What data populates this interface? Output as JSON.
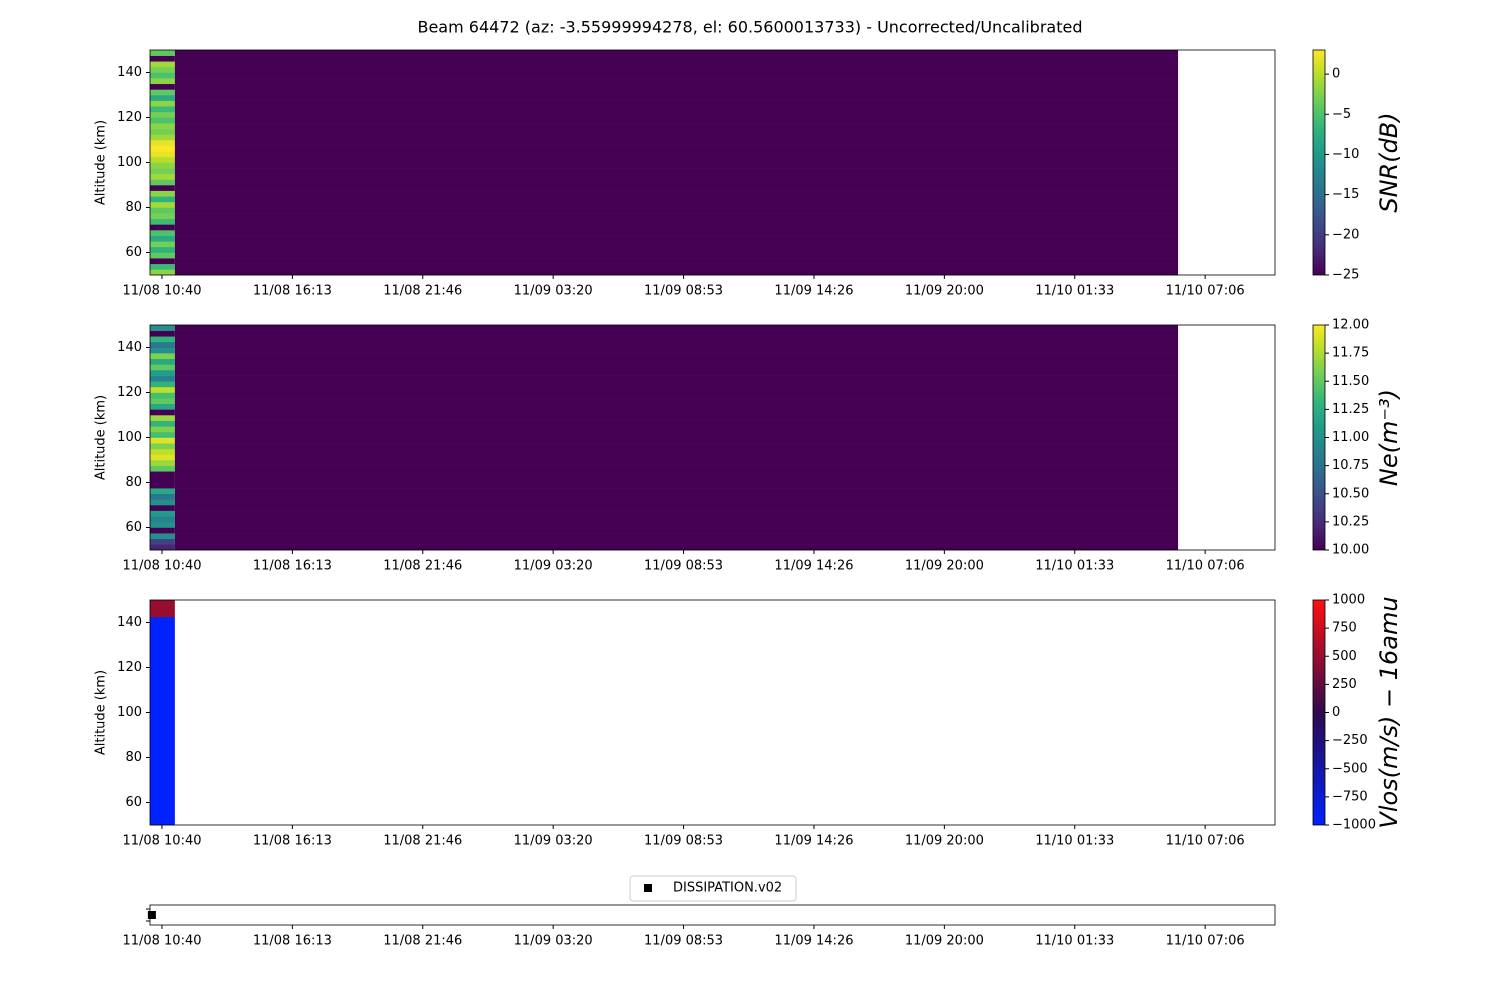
{
  "title": "Beam 64472 (az: -3.55999994278, el: 60.5600013733) - Uncorrected/Uncalibrated",
  "chart_data": [
    {
      "type": "heatmap",
      "ylabel": "Altitude (km)",
      "colorbar_label": "SNR(dB)",
      "colormap": [
        "#440154",
        "#482878",
        "#3e4989",
        "#31688e",
        "#26828e",
        "#1f9e89",
        "#35b779",
        "#6ece58",
        "#b5de2b",
        "#fde725"
      ],
      "clim": [
        -25,
        3
      ],
      "cticks": [
        {
          "value": -25,
          "label": "−25"
        },
        {
          "value": -20,
          "label": "−20"
        },
        {
          "value": -15,
          "label": "−15"
        },
        {
          "value": -10,
          "label": "−10"
        },
        {
          "value": -5,
          "label": "−5"
        },
        0
      ],
      "xlim": [
        -0.51,
        47.42
      ],
      "xticks": [
        {
          "value": 0,
          "label": "11/08 10:40"
        },
        {
          "value": 5.556,
          "label": "11/08 16:13"
        },
        {
          "value": 11.111,
          "label": "11/08 21:46"
        },
        {
          "value": 16.667,
          "label": "11/09 03:20"
        },
        {
          "value": 22.222,
          "label": "11/09 08:53"
        },
        {
          "value": 27.778,
          "label": "11/09 14:26"
        },
        {
          "value": 33.333,
          "label": "11/09 20:00"
        },
        {
          "value": 38.889,
          "label": "11/10 01:33"
        },
        {
          "value": 44.444,
          "label": "11/10 07:06"
        }
      ],
      "ylim": [
        50,
        150
      ],
      "yticks": [
        60,
        80,
        100,
        120,
        140
      ],
      "x_edges": [
        -0.51,
        0.55,
        43.29
      ],
      "y_edges": [
        50,
        52.5,
        55,
        57.5,
        60,
        62.5,
        65,
        67.5,
        70,
        72.5,
        75,
        77.5,
        80,
        82.5,
        85,
        87.5,
        90,
        92.5,
        95,
        97.5,
        100,
        102.5,
        105,
        107.5,
        110,
        112.5,
        115,
        117.5,
        120,
        122.5,
        125,
        127.5,
        130,
        132.5,
        135,
        137.5,
        140,
        142.5,
        145,
        147.5,
        150
      ],
      "z": [
        [
          -2,
          -25
        ],
        [
          -6,
          -25
        ],
        [
          -25,
          -25
        ],
        [
          -4,
          -25
        ],
        [
          -7,
          -25
        ],
        [
          -3,
          -25
        ],
        [
          -8,
          -25
        ],
        [
          -5,
          -25
        ],
        [
          -25,
          -25
        ],
        [
          -6,
          -25
        ],
        [
          -3,
          -25
        ],
        [
          -4,
          -25
        ],
        [
          -1,
          -25
        ],
        [
          -7,
          -25
        ],
        [
          -2,
          -25
        ],
        [
          -25,
          -25
        ],
        [
          -4,
          -25
        ],
        [
          -1,
          -25
        ],
        [
          -3,
          -25
        ],
        [
          -2,
          -25
        ],
        [
          0,
          -25
        ],
        [
          2,
          -25
        ],
        [
          3,
          -25
        ],
        [
          2,
          -25
        ],
        [
          -1,
          -25
        ],
        [
          -3,
          -25
        ],
        [
          -2,
          -25
        ],
        [
          -5,
          -25
        ],
        [
          -3,
          -25
        ],
        [
          -6,
          -25
        ],
        [
          -2,
          -25
        ],
        [
          -8,
          -25
        ],
        [
          -4,
          -25
        ],
        [
          -25,
          -25
        ],
        [
          -2,
          -25
        ],
        [
          -5,
          -25
        ],
        [
          -3,
          -25
        ],
        [
          -1,
          -25
        ],
        [
          -25,
          -25
        ],
        [
          -4,
          -25
        ]
      ]
    },
    {
      "type": "heatmap",
      "ylabel": "Altitude (km)",
      "colorbar_label": "Ne(m⁻³)",
      "colormap": [
        "#440154",
        "#482878",
        "#3e4989",
        "#31688e",
        "#26828e",
        "#1f9e89",
        "#35b779",
        "#6ece58",
        "#b5de2b",
        "#fde725"
      ],
      "clim": [
        10,
        12
      ],
      "cticks": [
        {
          "value": 10,
          "label": "10.00"
        },
        {
          "value": 10.25,
          "label": "10.25"
        },
        {
          "value": 10.5,
          "label": "10.50"
        },
        {
          "value": 10.75,
          "label": "10.75"
        },
        {
          "value": 11,
          "label": "11.00"
        },
        {
          "value": 11.25,
          "label": "11.25"
        },
        {
          "value": 11.5,
          "label": "11.50"
        },
        {
          "value": 11.75,
          "label": "11.75"
        },
        {
          "value": 12,
          "label": "12.00"
        }
      ],
      "xlim": [
        -0.51,
        47.42
      ],
      "xticks": [
        {
          "value": 0,
          "label": "11/08 10:40"
        },
        {
          "value": 5.556,
          "label": "11/08 16:13"
        },
        {
          "value": 11.111,
          "label": "11/08 21:46"
        },
        {
          "value": 16.667,
          "label": "11/09 03:20"
        },
        {
          "value": 22.222,
          "label": "11/09 08:53"
        },
        {
          "value": 27.778,
          "label": "11/09 14:26"
        },
        {
          "value": 33.333,
          "label": "11/09 20:00"
        },
        {
          "value": 38.889,
          "label": "11/10 01:33"
        },
        {
          "value": 44.444,
          "label": "11/10 07:06"
        }
      ],
      "ylim": [
        50,
        150
      ],
      "yticks": [
        60,
        80,
        100,
        120,
        140
      ],
      "x_edges": [
        -0.51,
        0.55,
        43.29
      ],
      "y_edges": [
        50,
        52.5,
        55,
        57.5,
        60,
        62.5,
        65,
        67.5,
        70,
        72.5,
        75,
        77.5,
        80,
        82.5,
        85,
        87.5,
        90,
        92.5,
        95,
        97.5,
        100,
        102.5,
        105,
        107.5,
        110,
        112.5,
        115,
        117.5,
        120,
        122.5,
        125,
        127.5,
        130,
        132.5,
        135,
        137.5,
        140,
        142.5,
        145,
        147.5,
        150
      ],
      "z": [
        [
          10.2,
          10
        ],
        [
          10.4,
          10
        ],
        [
          11,
          10
        ],
        [
          10,
          10
        ],
        [
          11,
          10
        ],
        [
          10.9,
          10
        ],
        [
          11.1,
          10
        ],
        [
          10,
          10
        ],
        [
          11,
          10
        ],
        [
          10.8,
          10
        ],
        [
          11.2,
          10
        ],
        [
          10,
          10
        ],
        [
          10,
          10
        ],
        [
          10,
          10
        ],
        [
          11.5,
          10
        ],
        [
          11.7,
          10
        ],
        [
          11.9,
          10
        ],
        [
          11.8,
          10
        ],
        [
          11.6,
          10
        ],
        [
          11.9,
          10
        ],
        [
          11.4,
          10
        ],
        [
          11.6,
          10
        ],
        [
          11.3,
          10
        ],
        [
          11.7,
          10
        ],
        [
          10,
          10
        ],
        [
          11.2,
          10
        ],
        [
          11.5,
          10
        ],
        [
          11.4,
          10
        ],
        [
          11.8,
          10
        ],
        [
          11.3,
          10
        ],
        [
          10.9,
          10
        ],
        [
          11.1,
          10
        ],
        [
          11.5,
          10
        ],
        [
          11.2,
          10
        ],
        [
          11.6,
          10
        ],
        [
          11,
          10
        ],
        [
          10.8,
          10
        ],
        [
          11.3,
          10
        ],
        [
          10,
          10
        ],
        [
          11,
          10
        ]
      ]
    },
    {
      "type": "heatmap",
      "ylabel": "Altitude (km)",
      "colorbar_label": "Vlos(m/s) − 16amu",
      "colormap": [
        "#0022ff",
        "#2d0a4e",
        "#ff1010"
      ],
      "clim": [
        -1000,
        1000
      ],
      "cticks": [
        {
          "value": -1000,
          "label": "−1000"
        },
        {
          "value": -750,
          "label": "−750"
        },
        {
          "value": -500,
          "label": "−500"
        },
        {
          "value": -250,
          "label": "−250"
        },
        0,
        250,
        500,
        750,
        1000
      ],
      "xlim": [
        -0.51,
        47.42
      ],
      "xticks": [
        {
          "value": 0,
          "label": "11/08 10:40"
        },
        {
          "value": 5.556,
          "label": "11/08 16:13"
        },
        {
          "value": 11.111,
          "label": "11/08 21:46"
        },
        {
          "value": 16.667,
          "label": "11/09 03:20"
        },
        {
          "value": 22.222,
          "label": "11/09 08:53"
        },
        {
          "value": 27.778,
          "label": "11/09 14:26"
        },
        {
          "value": 33.333,
          "label": "11/09 20:00"
        },
        {
          "value": 38.889,
          "label": "11/10 01:33"
        },
        {
          "value": 44.444,
          "label": "11/10 07:06"
        }
      ],
      "ylim": [
        50,
        150
      ],
      "yticks": [
        60,
        80,
        100,
        120,
        140
      ],
      "x_edges": [
        -0.51,
        0.55,
        43.29
      ],
      "y_edges": [
        50,
        142.5,
        150
      ],
      "z": [
        [
          -1000,
          null
        ],
        [
          500,
          null
        ]
      ]
    },
    {
      "type": "scatter",
      "xlim": [
        -0.51,
        47.42
      ],
      "xticks": [
        {
          "value": 0,
          "label": "11/08 10:40"
        },
        {
          "value": 5.556,
          "label": "11/08 16:13"
        },
        {
          "value": 11.111,
          "label": "11/08 21:46"
        },
        {
          "value": 16.667,
          "label": "11/09 03:20"
        },
        {
          "value": 22.222,
          "label": "11/09 08:53"
        },
        {
          "value": 27.778,
          "label": "11/09 14:26"
        },
        {
          "value": 33.333,
          "label": "11/09 20:00"
        },
        {
          "value": 38.889,
          "label": "11/10 01:33"
        },
        {
          "value": 44.444,
          "label": "11/10 07:06"
        }
      ],
      "ylim": [
        -1,
        1
      ],
      "series": [
        {
          "name": "DISSIPATION.v02",
          "color": "#000000",
          "x": [
            -0.43
          ],
          "values": [
            0
          ]
        }
      ]
    }
  ]
}
